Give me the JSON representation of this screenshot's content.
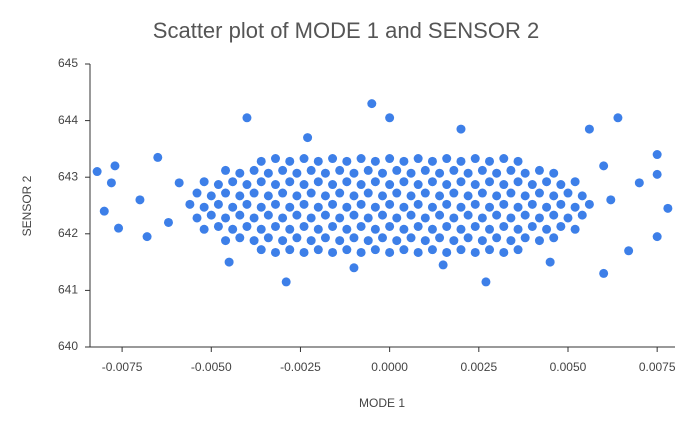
{
  "chart_data": {
    "type": "scatter",
    "title": "Scatter plot of MODE 1 and SENSOR 2",
    "x_label": "MODE 1",
    "y_label": "SENSOR 2",
    "color": "#3d7fe8",
    "xlim": [
      -0.0084,
      0.008
    ],
    "ylim": [
      640,
      645
    ],
    "xticks": [
      -0.0075,
      {
        "value": -0.005,
        "label": "-0.0050"
      },
      -0.0025,
      {
        "value": 0,
        "label": "0.0000"
      },
      0.0025,
      {
        "value": 0.005,
        "label": "0.0050"
      },
      0.0075
    ],
    "yticks": [
      640,
      641,
      642,
      643,
      644,
      645
    ],
    "x": [
      -0.0056,
      -0.0052,
      -0.0048,
      -0.0044,
      -0.004,
      -0.0036,
      -0.0032,
      -0.0028,
      -0.0024,
      -0.002,
      -0.0016,
      -0.0012,
      -0.0008,
      -0.0004,
      0.0,
      0.0004,
      0.0008,
      0.0012,
      0.0016,
      0.002,
      0.0024,
      0.0028,
      0.0032,
      0.0036,
      0.004,
      0.0044,
      0.0048,
      0.0052,
      0.0056,
      -0.0054,
      -0.005,
      -0.0046,
      -0.0042,
      -0.0038,
      -0.0034,
      -0.003,
      -0.0026,
      -0.0022,
      -0.0018,
      -0.0014,
      -0.001,
      -0.0006,
      -0.0002,
      0.0002,
      0.0006,
      0.001,
      0.0014,
      0.0018,
      0.0022,
      0.0026,
      0.003,
      0.0034,
      0.0038,
      0.0042,
      0.0046,
      0.005,
      0.0054,
      -0.0054,
      -0.005,
      -0.0046,
      -0.0042,
      -0.0038,
      -0.0034,
      -0.003,
      -0.0026,
      -0.0022,
      -0.0018,
      -0.0014,
      -0.001,
      -0.0006,
      -0.0002,
      0.0002,
      0.0006,
      0.001,
      0.0014,
      0.0018,
      0.0022,
      0.0026,
      0.003,
      0.0034,
      0.0038,
      0.0042,
      0.0046,
      0.005,
      0.0054,
      -0.0052,
      -0.0048,
      -0.0044,
      -0.004,
      -0.0036,
      -0.0032,
      -0.0028,
      -0.0024,
      -0.002,
      -0.0016,
      -0.0012,
      -0.0008,
      -0.0004,
      0.0,
      0.0004,
      0.0008,
      0.0012,
      0.0016,
      0.002,
      0.0024,
      0.0028,
      0.0032,
      0.0036,
      0.004,
      0.0044,
      0.0048,
      0.0052,
      -0.0052,
      -0.0048,
      -0.0044,
      -0.004,
      -0.0036,
      -0.0032,
      -0.0028,
      -0.0024,
      -0.002,
      -0.0016,
      -0.0012,
      -0.0008,
      -0.0004,
      0.0,
      0.0004,
      0.0008,
      0.0012,
      0.0016,
      0.002,
      0.0024,
      0.0028,
      0.0032,
      0.0036,
      0.004,
      0.0044,
      0.0048,
      0.0052,
      -0.0046,
      -0.0042,
      -0.0038,
      -0.0034,
      -0.003,
      -0.0026,
      -0.0022,
      -0.0018,
      -0.0014,
      -0.001,
      -0.0006,
      -0.0002,
      0.0002,
      0.0006,
      0.001,
      0.0014,
      0.0018,
      0.0022,
      0.0026,
      0.003,
      0.0034,
      0.0038,
      0.0042,
      0.0046,
      -0.0046,
      -0.0042,
      -0.0038,
      -0.0034,
      -0.003,
      -0.0026,
      -0.0022,
      -0.0018,
      -0.0014,
      -0.001,
      -0.0006,
      -0.0002,
      0.0002,
      0.0006,
      0.001,
      0.0014,
      0.0018,
      0.0022,
      0.0026,
      0.003,
      0.0034,
      0.0038,
      0.0042,
      0.0046,
      -0.0036,
      -0.0032,
      -0.0028,
      -0.0024,
      -0.002,
      -0.0016,
      -0.0012,
      -0.0008,
      -0.0004,
      0.0,
      0.0004,
      0.0008,
      0.0012,
      0.0016,
      0.002,
      0.0024,
      0.0028,
      0.0032,
      0.0036,
      -0.0036,
      -0.0032,
      -0.0028,
      -0.0024,
      -0.002,
      -0.0016,
      -0.0012,
      -0.0008,
      -0.0004,
      0.0,
      0.0004,
      0.0008,
      0.0012,
      0.0016,
      0.002,
      0.0024,
      0.0028,
      0.0032,
      0.0036,
      -0.0082,
      -0.0077,
      -0.0078,
      -0.008,
      -0.0076,
      -0.007,
      -0.0068,
      -0.0065,
      -0.0062,
      -0.0059,
      -0.004,
      -0.0023,
      -0.0005,
      0.0,
      0.002,
      -0.0029,
      0.0027,
      -0.001,
      0.0015,
      -0.0045,
      0.0045,
      0.0064,
      0.0056,
      0.0075,
      0.0075,
      0.0078,
      0.0075,
      0.007,
      0.0067,
      0.006,
      0.0062,
      0.006
    ],
    "y": [
      642.52,
      642.47,
      642.52,
      642.47,
      642.52,
      642.47,
      642.52,
      642.47,
      642.52,
      642.47,
      642.52,
      642.47,
      642.52,
      642.47,
      642.52,
      642.47,
      642.52,
      642.47,
      642.52,
      642.47,
      642.52,
      642.47,
      642.52,
      642.47,
      642.52,
      642.47,
      642.52,
      642.47,
      642.52,
      642.28,
      642.33,
      642.28,
      642.33,
      642.28,
      642.33,
      642.28,
      642.33,
      642.28,
      642.33,
      642.28,
      642.33,
      642.28,
      642.33,
      642.28,
      642.33,
      642.28,
      642.33,
      642.28,
      642.33,
      642.28,
      642.33,
      642.28,
      642.33,
      642.28,
      642.33,
      642.28,
      642.33,
      642.72,
      642.67,
      642.72,
      642.67,
      642.72,
      642.67,
      642.72,
      642.67,
      642.72,
      642.67,
      642.72,
      642.67,
      642.72,
      642.67,
      642.72,
      642.67,
      642.72,
      642.67,
      642.72,
      642.67,
      642.72,
      642.67,
      642.72,
      642.67,
      642.72,
      642.67,
      642.72,
      642.67,
      642.08,
      642.13,
      642.08,
      642.13,
      642.08,
      642.13,
      642.08,
      642.13,
      642.08,
      642.13,
      642.08,
      642.13,
      642.08,
      642.13,
      642.08,
      642.13,
      642.08,
      642.13,
      642.08,
      642.13,
      642.08,
      642.13,
      642.08,
      642.13,
      642.08,
      642.13,
      642.08,
      642.92,
      642.87,
      642.92,
      642.87,
      642.92,
      642.87,
      642.92,
      642.87,
      642.92,
      642.87,
      642.92,
      642.87,
      642.92,
      642.87,
      642.92,
      642.87,
      642.92,
      642.87,
      642.92,
      642.87,
      642.92,
      642.87,
      642.92,
      642.87,
      642.92,
      642.87,
      642.92,
      641.88,
      641.93,
      641.88,
      641.93,
      641.88,
      641.93,
      641.88,
      641.93,
      641.88,
      641.93,
      641.88,
      641.93,
      641.88,
      641.93,
      641.88,
      641.93,
      641.88,
      641.93,
      641.88,
      641.93,
      641.88,
      641.93,
      641.88,
      641.93,
      643.12,
      643.07,
      643.12,
      643.07,
      643.12,
      643.07,
      643.12,
      643.07,
      643.12,
      643.07,
      643.12,
      643.07,
      643.12,
      643.07,
      643.12,
      643.07,
      643.12,
      643.07,
      643.12,
      643.07,
      643.12,
      643.07,
      643.12,
      643.07,
      641.72,
      641.67,
      641.72,
      641.67,
      641.72,
      641.67,
      641.72,
      641.67,
      641.72,
      641.67,
      641.72,
      641.67,
      641.72,
      641.67,
      641.72,
      641.67,
      641.72,
      641.67,
      641.72,
      643.28,
      643.33,
      643.28,
      643.33,
      643.28,
      643.33,
      643.28,
      643.33,
      643.28,
      643.33,
      643.28,
      643.33,
      643.28,
      643.33,
      643.28,
      643.33,
      643.28,
      643.33,
      643.28,
      643.1,
      643.2,
      642.9,
      642.4,
      642.1,
      642.6,
      641.95,
      643.35,
      642.2,
      642.9,
      644.05,
      643.7,
      644.3,
      644.05,
      643.85,
      641.15,
      641.15,
      641.4,
      641.45,
      641.5,
      641.5,
      644.05,
      643.85,
      643.4,
      643.05,
      642.45,
      641.95,
      642.9,
      641.7,
      641.3,
      642.6,
      643.2
    ]
  }
}
